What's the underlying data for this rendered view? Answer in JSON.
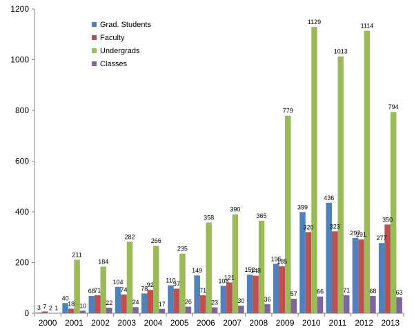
{
  "chart_data": {
    "type": "bar",
    "title": "",
    "xlabel": "",
    "ylabel": "",
    "ylim": [
      0,
      1200
    ],
    "y_ticks": [
      0,
      200,
      400,
      600,
      800,
      1000,
      1200
    ],
    "grid": false,
    "legend_position": "top-left",
    "categories": [
      "2000",
      "2001",
      "2002",
      "2003",
      "2004",
      "2005",
      "2006",
      "2007",
      "2008",
      "2009",
      "2010",
      "2011",
      "2012",
      "2013"
    ],
    "series": [
      {
        "name": "Grad. Students",
        "color": "#4F81BD",
        "values": [
          3,
          40,
          68,
          104,
          78,
          110,
          149,
          108,
          152,
          195,
          399,
          436,
          297,
          277
        ]
      },
      {
        "name": "Faculty",
        "color": "#C0504D",
        "values": [
          7,
          18,
          71,
          74,
          92,
          97,
          71,
          121,
          148,
          185,
          320,
          323,
          291,
          350
        ]
      },
      {
        "name": "Undergrads",
        "color": "#9BBB59",
        "values": [
          2,
          211,
          184,
          282,
          266,
          235,
          358,
          390,
          365,
          779,
          1129,
          1013,
          1114,
          794
        ]
      },
      {
        "name": "Classes",
        "color": "#8064A2",
        "values": [
          1,
          10,
          22,
          24,
          17,
          26,
          23,
          30,
          36,
          57,
          66,
          71,
          68,
          63
        ]
      }
    ]
  }
}
